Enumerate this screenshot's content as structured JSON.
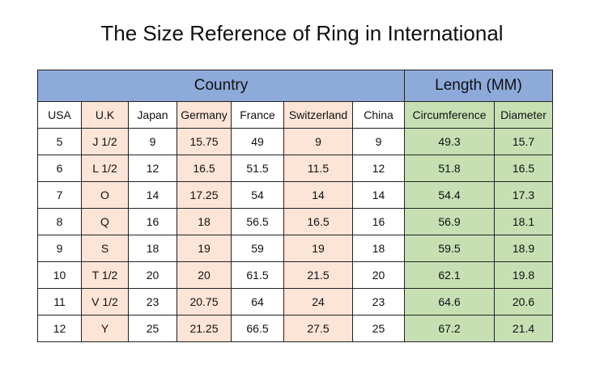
{
  "title": "The Size Reference of Ring in International",
  "groups": {
    "country": "Country",
    "length": "Length  (MM)"
  },
  "columns": [
    "USA",
    "U.K",
    "Japan",
    "Germany",
    "France",
    "Switzerland",
    "China",
    "Circumference",
    "Diameter"
  ],
  "rows": [
    [
      "5",
      "J 1/2",
      "9",
      "15.75",
      "49",
      "9",
      "9",
      "49.3",
      "15.7"
    ],
    [
      "6",
      "L 1/2",
      "12",
      "16.5",
      "51.5",
      "11.5",
      "12",
      "51.8",
      "16.5"
    ],
    [
      "7",
      "O",
      "14",
      "17.25",
      "54",
      "14",
      "14",
      "54.4",
      "17.3"
    ],
    [
      "8",
      "Q",
      "16",
      "18",
      "56.5",
      "16.5",
      "16",
      "56.9",
      "18.1"
    ],
    [
      "9",
      "S",
      "18",
      "19",
      "59",
      "19",
      "18",
      "59.5",
      "18.9"
    ],
    [
      "10",
      "T 1/2",
      "20",
      "20",
      "61.5",
      "21.5",
      "20",
      "62.1",
      "19.8"
    ],
    [
      "11",
      "V 1/2",
      "23",
      "20.75",
      "64",
      "24",
      "23",
      "64.6",
      "20.6"
    ],
    [
      "12",
      "Y",
      "25",
      "21.25",
      "66.5",
      "27.5",
      "25",
      "67.2",
      "21.4"
    ]
  ],
  "colors": {
    "header_blue": "#8eaadb",
    "peach": "#fce4d6",
    "green": "#c6e0b4"
  }
}
